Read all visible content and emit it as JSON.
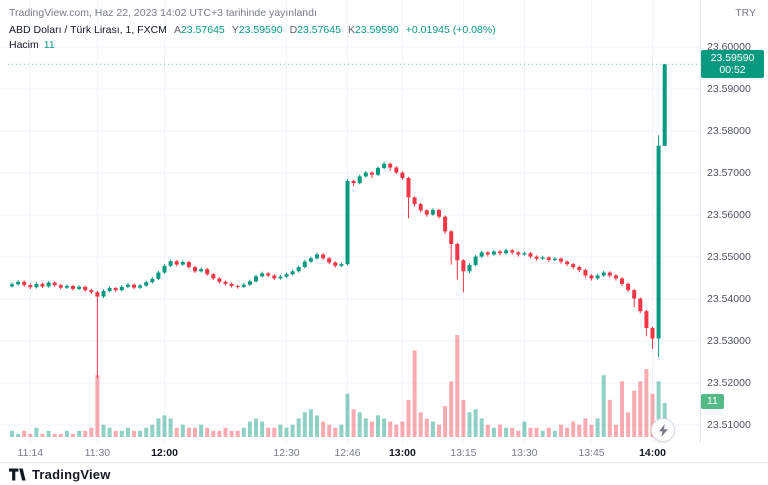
{
  "published_line": "TradingView.com, Haz 22, 2023 14:02 UTC+3 tarihinde yayınlandı",
  "currency_label": "TRY",
  "header": {
    "symbol_title": "ABD Doları / Türk Lirası, 1, FXCM",
    "ohlc": [
      {
        "label": "A",
        "value": "23.57645"
      },
      {
        "label": "Y",
        "value": "23.59590"
      },
      {
        "label": "D",
        "value": "23.57645"
      },
      {
        "label": "K",
        "value": "23.59590"
      }
    ],
    "change": "+0.01945 (+0.08%)",
    "volume_label": "Hacim",
    "volume_value": "11"
  },
  "footer": {
    "brand": "TradingView"
  },
  "colors": {
    "up": "#089981",
    "down": "#f23645",
    "vol_up": "rgba(8,153,129,0.45)",
    "vol_down": "rgba(242,54,69,0.42)",
    "grid": "#f0f3fa",
    "axis_border": "#e0e3eb",
    "text": "#131722",
    "text_muted": "#787b86",
    "last_price_badge": "#089981",
    "volume_badge": "#53b987"
  },
  "chart_data": {
    "type": "candlestick",
    "symbol": "ABD Doları / Türk Lirası",
    "interval": "1",
    "exchange": "FXCM",
    "ylim": [
      23.505,
      23.605
    ],
    "y_ticks": [
      {
        "v": 23.6,
        "label": "23.60000"
      },
      {
        "v": 23.59,
        "label": "23.59000"
      },
      {
        "v": 23.58,
        "label": "23.58000"
      },
      {
        "v": 23.57,
        "label": "23.57000"
      },
      {
        "v": 23.56,
        "label": "23.56000"
      },
      {
        "v": 23.55,
        "label": "23.55000"
      },
      {
        "v": 23.54,
        "label": "23.54000"
      },
      {
        "v": 23.53,
        "label": "23.53000"
      },
      {
        "v": 23.52,
        "label": "23.52000"
      },
      {
        "v": 23.51,
        "label": "23.51000"
      }
    ],
    "time_ticks": [
      {
        "i": 3,
        "label": "11:14",
        "bold": false
      },
      {
        "i": 14,
        "label": "11:30",
        "bold": false
      },
      {
        "i": 25,
        "label": "12:00",
        "bold": true
      },
      {
        "i": 45,
        "label": "12:30",
        "bold": false
      },
      {
        "i": 55,
        "label": "12:46",
        "bold": false
      },
      {
        "i": 64,
        "label": "13:00",
        "bold": true
      },
      {
        "i": 74,
        "label": "13:15",
        "bold": false
      },
      {
        "i": 84,
        "label": "13:30",
        "bold": false
      },
      {
        "i": 95,
        "label": "13:45",
        "bold": false
      },
      {
        "i": 105,
        "label": "14:00",
        "bold": true
      }
    ],
    "last_price": {
      "v": 23.5959,
      "label": "23.59590",
      "countdown": "00:52"
    },
    "volume_last": 11,
    "candles": [
      [
        23.543,
        23.544,
        23.5427,
        23.5435,
        2
      ],
      [
        23.5435,
        23.5445,
        23.5432,
        23.5441,
        1
      ],
      [
        23.5441,
        23.5444,
        23.5429,
        23.5433,
        2
      ],
      [
        23.5433,
        23.5437,
        23.5424,
        23.5428,
        1
      ],
      [
        23.5428,
        23.544,
        23.5425,
        23.5436,
        3
      ],
      [
        23.5436,
        23.5439,
        23.5426,
        23.543,
        1
      ],
      [
        23.543,
        23.5443,
        23.5427,
        23.5439,
        2
      ],
      [
        23.5439,
        23.5442,
        23.5429,
        23.5433,
        1
      ],
      [
        23.5433,
        23.5436,
        23.5423,
        23.5427,
        1
      ],
      [
        23.5427,
        23.5435,
        23.5424,
        23.5431,
        2
      ],
      [
        23.5431,
        23.5434,
        23.542,
        23.5424,
        1
      ],
      [
        23.5424,
        23.5433,
        23.5421,
        23.5429,
        2
      ],
      [
        23.5429,
        23.5432,
        23.5417,
        23.5421,
        2
      ],
      [
        23.5421,
        23.5424,
        23.5412,
        23.5416,
        3
      ],
      [
        23.5416,
        23.542,
        23.5212,
        23.5406,
        20
      ],
      [
        23.5406,
        23.5423,
        23.5402,
        23.5419,
        4
      ],
      [
        23.5419,
        23.543,
        23.5416,
        23.5426,
        3
      ],
      [
        23.5426,
        23.5429,
        23.5417,
        23.5421,
        2
      ],
      [
        23.5421,
        23.5433,
        23.5418,
        23.5429,
        2
      ],
      [
        23.5429,
        23.5438,
        23.5426,
        23.5434,
        3
      ],
      [
        23.5434,
        23.5437,
        23.5423,
        23.5427,
        2
      ],
      [
        23.5427,
        23.5436,
        23.5424,
        23.5432,
        2
      ],
      [
        23.5432,
        23.5444,
        23.5429,
        23.544,
        3
      ],
      [
        23.544,
        23.5452,
        23.5437,
        23.5448,
        4
      ],
      [
        23.5448,
        23.5467,
        23.5445,
        23.5463,
        6
      ],
      [
        23.5463,
        23.5483,
        23.546,
        23.5479,
        7
      ],
      [
        23.5479,
        23.5494,
        23.5476,
        23.549,
        6
      ],
      [
        23.549,
        23.5493,
        23.5478,
        23.5482,
        3
      ],
      [
        23.5482,
        23.5492,
        23.5479,
        23.5488,
        4
      ],
      [
        23.5488,
        23.5491,
        23.5472,
        23.5476,
        3
      ],
      [
        23.5476,
        23.5479,
        23.5462,
        23.5466,
        3
      ],
      [
        23.5466,
        23.5475,
        23.5463,
        23.5471,
        4
      ],
      [
        23.5471,
        23.5474,
        23.5455,
        23.5459,
        3
      ],
      [
        23.5459,
        23.5462,
        23.5445,
        23.5449,
        2
      ],
      [
        23.5449,
        23.5452,
        23.5437,
        23.5441,
        2
      ],
      [
        23.5441,
        23.5444,
        23.5432,
        23.5436,
        3
      ],
      [
        23.5436,
        23.5439,
        23.5427,
        23.5431,
        2
      ],
      [
        23.5431,
        23.5434,
        23.5425,
        23.5429,
        2
      ],
      [
        23.5429,
        23.5438,
        23.5426,
        23.5434,
        3
      ],
      [
        23.5434,
        23.5446,
        23.5431,
        23.5442,
        5
      ],
      [
        23.5442,
        23.5458,
        23.5439,
        23.5454,
        6
      ],
      [
        23.5454,
        23.5465,
        23.5451,
        23.5461,
        5
      ],
      [
        23.5461,
        23.5464,
        23.5452,
        23.5456,
        3
      ],
      [
        23.5456,
        23.5459,
        23.5445,
        23.5449,
        3
      ],
      [
        23.5449,
        23.5457,
        23.5446,
        23.5453,
        4
      ],
      [
        23.5453,
        23.5463,
        23.545,
        23.5459,
        3
      ],
      [
        23.5459,
        23.547,
        23.5456,
        23.5466,
        4
      ],
      [
        23.5466,
        23.548,
        23.5463,
        23.5476,
        6
      ],
      [
        23.5476,
        23.5493,
        23.5473,
        23.5489,
        8
      ],
      [
        23.5489,
        23.5501,
        23.5486,
        23.5497,
        9
      ],
      [
        23.5497,
        23.551,
        23.5494,
        23.5506,
        7
      ],
      [
        23.5506,
        23.5509,
        23.5493,
        23.5497,
        5
      ],
      [
        23.5497,
        23.55,
        23.5483,
        23.5487,
        4
      ],
      [
        23.5487,
        23.549,
        23.5475,
        23.5479,
        3
      ],
      [
        23.5479,
        23.5487,
        23.5476,
        23.5483,
        4
      ],
      [
        23.5483,
        23.5686,
        23.548,
        23.5681,
        14
      ],
      [
        23.5681,
        23.5684,
        23.5668,
        23.5676,
        9
      ],
      [
        23.5676,
        23.5696,
        23.5673,
        23.5692,
        8
      ],
      [
        23.5692,
        23.5705,
        23.5689,
        23.5701,
        6
      ],
      [
        23.5701,
        23.5704,
        23.5688,
        23.5696,
        5
      ],
      [
        23.5696,
        23.5716,
        23.5693,
        23.5712,
        7
      ],
      [
        23.5712,
        23.5727,
        23.5709,
        23.5722,
        6
      ],
      [
        23.5722,
        23.5725,
        23.5705,
        23.5713,
        5
      ],
      [
        23.5713,
        23.5716,
        23.5697,
        23.5701,
        4
      ],
      [
        23.5701,
        23.5704,
        23.5684,
        23.5688,
        5
      ],
      [
        23.5688,
        23.5691,
        23.5592,
        23.5642,
        12
      ],
      [
        23.5642,
        23.5645,
        23.562,
        23.5626,
        28
      ],
      [
        23.5626,
        23.5629,
        23.5606,
        23.5611,
        8
      ],
      [
        23.5611,
        23.5614,
        23.5596,
        23.5601,
        6
      ],
      [
        23.5601,
        23.5616,
        23.5598,
        23.5612,
        5
      ],
      [
        23.5612,
        23.5615,
        23.5591,
        23.5596,
        4
      ],
      [
        23.5596,
        23.5599,
        23.5555,
        23.5561,
        10
      ],
      [
        23.5561,
        23.5564,
        23.5482,
        23.5531,
        18
      ],
      [
        23.5531,
        23.5534,
        23.5446,
        23.5492,
        33
      ],
      [
        23.5492,
        23.5495,
        23.5416,
        23.5466,
        12
      ],
      [
        23.5466,
        23.5485,
        23.5462,
        23.5481,
        8
      ],
      [
        23.5481,
        23.5505,
        23.5478,
        23.5501,
        9
      ],
      [
        23.5501,
        23.5515,
        23.5498,
        23.5511,
        6
      ],
      [
        23.5511,
        23.5514,
        23.5501,
        23.5506,
        4
      ],
      [
        23.5506,
        23.5517,
        23.5503,
        23.5513,
        3
      ],
      [
        23.5513,
        23.5516,
        23.5504,
        23.5509,
        4
      ],
      [
        23.5509,
        23.552,
        23.5506,
        23.5516,
        3
      ],
      [
        23.5516,
        23.5519,
        23.5506,
        23.5511,
        3
      ],
      [
        23.5511,
        23.5514,
        23.5501,
        23.5506,
        2
      ],
      [
        23.5506,
        23.5513,
        23.5503,
        23.5509,
        5
      ],
      [
        23.5509,
        23.5512,
        23.5496,
        23.5501,
        3
      ],
      [
        23.5501,
        23.5504,
        23.5491,
        23.5496,
        3
      ],
      [
        23.5496,
        23.5503,
        23.5493,
        23.5499,
        2
      ],
      [
        23.5499,
        23.5502,
        23.5488,
        23.5493,
        3
      ],
      [
        23.5493,
        23.55,
        23.549,
        23.5496,
        2
      ],
      [
        23.5496,
        23.5499,
        23.5484,
        23.5489,
        4
      ],
      [
        23.5489,
        23.5492,
        23.5478,
        23.5483,
        3
      ],
      [
        23.5483,
        23.5486,
        23.5471,
        23.5476,
        5
      ],
      [
        23.5476,
        23.5479,
        23.5464,
        23.5469,
        4
      ],
      [
        23.5469,
        23.5472,
        23.5451,
        23.5456,
        6
      ],
      [
        23.5456,
        23.5459,
        23.5444,
        23.5449,
        4
      ],
      [
        23.5449,
        23.546,
        23.5446,
        23.5456,
        6
      ],
      [
        23.5456,
        23.5467,
        23.5453,
        23.5463,
        20
      ],
      [
        23.5463,
        23.5466,
        23.5451,
        23.5456,
        12
      ],
      [
        23.5456,
        23.5459,
        23.5444,
        23.5449,
        4
      ],
      [
        23.5449,
        23.5452,
        23.5431,
        23.5436,
        18
      ],
      [
        23.5436,
        23.5439,
        23.5416,
        23.5421,
        8
      ],
      [
        23.5421,
        23.5424,
        23.5381,
        23.5401,
        15
      ],
      [
        23.5401,
        23.5404,
        23.5366,
        23.5371,
        18
      ],
      [
        23.5371,
        23.5374,
        23.5311,
        23.5331,
        22
      ],
      [
        23.5331,
        23.5334,
        23.5281,
        23.5306,
        14
      ],
      [
        23.5306,
        23.579,
        23.5262,
        23.5765,
        18
      ],
      [
        23.57645,
        23.5959,
        23.57645,
        23.5959,
        11
      ]
    ]
  }
}
